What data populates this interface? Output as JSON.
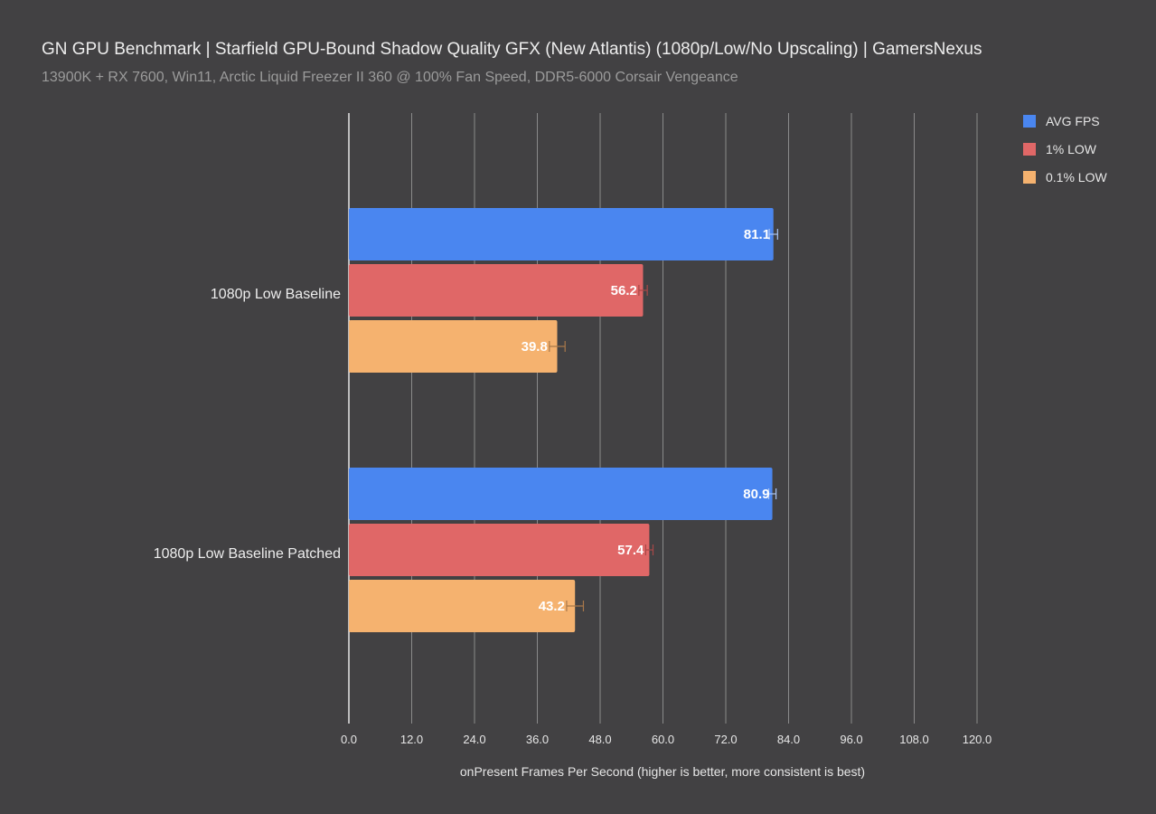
{
  "chart_data": {
    "type": "bar",
    "orientation": "horizontal",
    "title": "GN GPU Benchmark | Starfield GPU-Bound Shadow Quality GFX (New Atlantis) (1080p/Low/No Upscaling) | GamersNexus",
    "subtitle": "13900K + RX 7600, Win11, Arctic Liquid Freezer II 360 @ 100% Fan Speed, DDR5-6000 Corsair Vengeance",
    "xlabel": "onPresent Frames Per Second (higher is better, more consistent is best)",
    "ylabel": "",
    "xlim": [
      0,
      120
    ],
    "xticks": [
      "0.0",
      "12.0",
      "24.0",
      "36.0",
      "48.0",
      "60.0",
      "72.0",
      "84.0",
      "96.0",
      "108.0",
      "120.0"
    ],
    "grid": true,
    "legend_position": "top-right",
    "categories": [
      "1080p Low Baseline",
      "1080p Low Baseline Patched"
    ],
    "series": [
      {
        "name": "AVG FPS",
        "color": "#4a86f0",
        "values": [
          81.1,
          80.9
        ],
        "labels": [
          "81.1",
          "80.9"
        ],
        "error": [
          0.8,
          0.7
        ]
      },
      {
        "name": "1% LOW",
        "color": "#e06767",
        "values": [
          56.2,
          57.4
        ],
        "labels": [
          "56.2",
          "57.4"
        ],
        "error": [
          0.8,
          0.7
        ]
      },
      {
        "name": "0.1% LOW",
        "color": "#f5b26f",
        "values": [
          39.8,
          43.2
        ],
        "labels": [
          "39.8",
          "43.2"
        ],
        "error": [
          1.5,
          1.6
        ]
      }
    ]
  }
}
